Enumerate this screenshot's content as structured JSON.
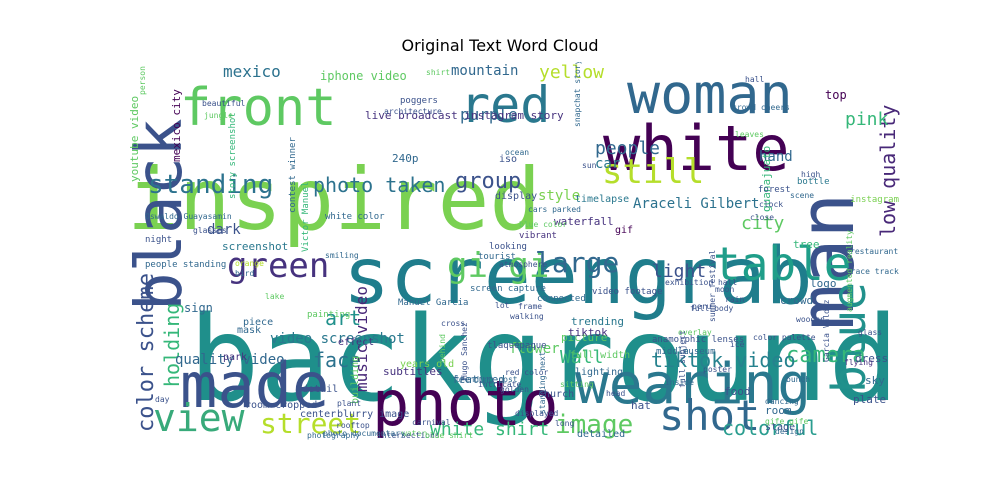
{
  "chart_data": {
    "type": "wordcloud",
    "title": "Original Text Word Cloud",
    "words": [
      {
        "text": "background",
        "color": "#1f8f8b"
      },
      {
        "text": "inspired",
        "color": "#7ad151"
      },
      {
        "text": "screengrab",
        "color": "#1f7d8c"
      },
      {
        "text": "photo",
        "color": "#440154"
      },
      {
        "text": "wearing",
        "color": "#2a788e"
      },
      {
        "text": "white",
        "color": "#440154"
      },
      {
        "text": "woman",
        "color": "#31688e"
      },
      {
        "text": "man",
        "color": "#3b528b"
      },
      {
        "text": "black",
        "color": "#3b528b"
      },
      {
        "text": "made",
        "color": "#3b528b"
      },
      {
        "text": "red",
        "color": "#2a788e"
      },
      {
        "text": "front",
        "color": "#5ec962"
      },
      {
        "text": "table",
        "color": "#1f9e89"
      },
      {
        "text": "blue",
        "color": "#21918c"
      },
      {
        "text": "view",
        "color": "#38aa7a"
      },
      {
        "text": "shot",
        "color": "#31688e"
      },
      {
        "text": "green",
        "color": "#46327e"
      },
      {
        "text": "still",
        "color": "#b5de2b"
      },
      {
        "text": "gi gi",
        "color": "#5ec962"
      },
      {
        "text": "standing",
        "color": "#2c728e"
      },
      {
        "text": "large",
        "color": "#31688e"
      },
      {
        "text": "street",
        "color": "#b5de2b"
      },
      {
        "text": "image",
        "color": "#5ec962"
      },
      {
        "text": "camera",
        "color": "#35b779"
      },
      {
        "text": "colorful",
        "color": "#2a9d8f"
      },
      {
        "text": "color scheme",
        "color": "#3b528b"
      },
      {
        "text": "holding",
        "color": "#35b779"
      },
      {
        "text": "low quality",
        "color": "#482878"
      },
      {
        "text": "group",
        "color": "#3b528b"
      },
      {
        "text": "photo taken",
        "color": "#2c728e"
      },
      {
        "text": "tiktok video",
        "color": "#26828e"
      },
      {
        "text": "white shirt",
        "color": "#35b779"
      },
      {
        "text": "Wall",
        "color": "#35b779"
      },
      {
        "text": "face",
        "color": "#2c728e"
      },
      {
        "text": "music video",
        "color": "#482878"
      },
      {
        "text": "art",
        "color": "#21918c"
      },
      {
        "text": "light",
        "color": "#3b528b"
      },
      {
        "text": "city",
        "color": "#5ec962"
      },
      {
        "text": "people",
        "color": "#31688e"
      },
      {
        "text": "yellow",
        "color": "#b5de2b"
      },
      {
        "text": "pink",
        "color": "#35b779"
      },
      {
        "text": "mexico",
        "color": "#2c728e"
      },
      {
        "text": "purple",
        "color": "#31688e"
      },
      {
        "text": "mountain",
        "color": "#31688e"
      },
      {
        "text": "quality video",
        "color": "#31688e"
      },
      {
        "text": "video screenshot",
        "color": "#2a788e"
      },
      {
        "text": "flower",
        "color": "#5ec962"
      },
      {
        "text": "car",
        "color": "#2a788e"
      },
      {
        "text": "hand",
        "color": "#31688e"
      },
      {
        "text": "dark",
        "color": "#3b528b"
      },
      {
        "text": "style",
        "color": "#7ad151"
      },
      {
        "text": "Araceli Gilbert",
        "color": "#2c728e"
      },
      {
        "text": "iphone video",
        "color": "#5ec962"
      },
      {
        "text": "live broadcast instagram story",
        "color": "#46327e"
      },
      {
        "text": "youtube video",
        "color": "#5ec962"
      },
      {
        "text": "mexico city",
        "color": "#440154"
      },
      {
        "text": "subtitles",
        "color": "#46327e"
      },
      {
        "text": "featured",
        "color": "#31688e"
      },
      {
        "text": "building",
        "color": "#5ec962"
      },
      {
        "text": "sign",
        "color": "#31688e"
      },
      {
        "text": "waterfall",
        "color": "#46327e"
      },
      {
        "text": "picture",
        "color": "#5ec962"
      },
      {
        "text": "screenshot",
        "color": "#2a788e"
      },
      {
        "text": "crowd",
        "color": "#31688e"
      },
      {
        "text": "logo",
        "color": "#31688e"
      },
      {
        "text": "tree",
        "color": "#35b779"
      },
      {
        "text": "trending",
        "color": "#2a788e"
      },
      {
        "text": "tiktok",
        "color": "#46327e"
      },
      {
        "text": "full width",
        "color": "#5ec962"
      },
      {
        "text": "lighting",
        "color": "#31688e"
      },
      {
        "text": "church",
        "color": "#3b528b"
      },
      {
        "text": "food",
        "color": "#3b528b"
      },
      {
        "text": "room",
        "color": "#31688e"
      },
      {
        "text": "hat",
        "color": "#3b528b"
      },
      {
        "text": "detailed",
        "color": "#31688e"
      },
      {
        "text": "top",
        "color": "#440154"
      },
      {
        "text": "240p",
        "color": "#31688e"
      },
      {
        "text": "iso",
        "color": "#3b528b"
      },
      {
        "text": "display",
        "color": "#3b528b"
      },
      {
        "text": "timelapse",
        "color": "#2a788e"
      },
      {
        "text": "gif",
        "color": "#440154"
      },
      {
        "text": "guanajuato",
        "color": "#35b779"
      },
      {
        "text": "dress",
        "color": "#3b528b"
      },
      {
        "text": "sky",
        "color": "#31688e"
      },
      {
        "text": "plate",
        "color": "#3b528b"
      },
      {
        "text": "stage",
        "color": "#3b528b"
      },
      {
        "text": "center",
        "color": "#3b528b"
      },
      {
        "text": "years old",
        "color": "#7ad151"
      },
      {
        "text": "effect",
        "color": "#46327e"
      },
      {
        "text": "mask",
        "color": "#31688e"
      },
      {
        "text": "piece",
        "color": "#31688e"
      },
      {
        "text": "park",
        "color": "#46327e"
      },
      {
        "text": "blurry image",
        "color": "#3b528b"
      },
      {
        "text": "room cropped",
        "color": "#3b528b"
      },
      {
        "text": "detail",
        "color": "#3b528b"
      },
      {
        "text": "people standing",
        "color": "#31688e"
      },
      {
        "text": "night",
        "color": "#3b528b"
      },
      {
        "text": "white color",
        "color": "#31688e"
      },
      {
        "text": "video footage",
        "color": "#3b528b"
      },
      {
        "text": "screen capture",
        "color": "#31688e"
      },
      {
        "text": "connected",
        "color": "#31688e"
      },
      {
        "text": "tourist",
        "color": "#31688e"
      },
      {
        "text": "vibrant",
        "color": "#46327e"
      },
      {
        "text": "looking",
        "color": "#3b528b"
      },
      {
        "text": "Manuel Garcia",
        "color": "#31688e"
      },
      {
        "text": "painting",
        "color": "#5ec962"
      },
      {
        "text": "Victor Manuel",
        "color": "#35b779"
      },
      {
        "text": "museum",
        "color": "#31688e"
      },
      {
        "text": "anamorphic lenses",
        "color": "#3b528b"
      },
      {
        "text": "middle",
        "color": "#31688e"
      },
      {
        "text": "tlaquepaque",
        "color": "#3b528b"
      },
      {
        "text": "bottle",
        "color": "#2a788e"
      },
      {
        "text": "forest",
        "color": "#3b528b"
      },
      {
        "text": "instagram",
        "color": "#7ad151"
      },
      {
        "text": "restaurant",
        "color": "#31688e"
      },
      {
        "text": "race track",
        "color": "#31688e"
      },
      {
        "text": "glass",
        "color": "#3b528b"
      },
      {
        "text": "flying",
        "color": "#46327e"
      },
      {
        "text": "augmented reality",
        "color": "#5ec962"
      },
      {
        "text": "Garcia Valdez",
        "color": "#3b528b"
      },
      {
        "text": "poster",
        "color": "#3b528b"
      },
      {
        "text": "dancing",
        "color": "#31688e"
      },
      {
        "text": "gife gife",
        "color": "#5ec962"
      },
      {
        "text": "summer festival",
        "color": "#3b528b"
      },
      {
        "text": "overlay",
        "color": "#5ec962"
      },
      {
        "text": "snapchat story",
        "color": "#31688e"
      },
      {
        "text": "poggers",
        "color": "#3b528b"
      },
      {
        "text": "story screenshot",
        "color": "#35b779"
      },
      {
        "text": "contest winner",
        "color": "#31688e"
      },
      {
        "text": "architecture",
        "color": "#3b528b"
      },
      {
        "text": "shirt",
        "color": "#5ec962"
      },
      {
        "text": "ocean",
        "color": "#31688e"
      },
      {
        "text": "beautiful",
        "color": "#3b528b"
      },
      {
        "text": "jungle",
        "color": "#5ec962"
      },
      {
        "text": "person",
        "color": "#5ec962"
      },
      {
        "text": "glasses",
        "color": "#3b528b"
      },
      {
        "text": "Oswaldo Guayasamin",
        "color": "#31688e"
      },
      {
        "text": "orange",
        "color": "#b5de2b"
      },
      {
        "text": "smiling",
        "color": "#31688e"
      },
      {
        "text": "full body",
        "color": "#3b528b"
      },
      {
        "text": "exhibition hall",
        "color": "#3b528b"
      },
      {
        "text": "photography",
        "color": "#31688e"
      },
      {
        "text": "water",
        "color": "#5ec962"
      },
      {
        "text": "carnival",
        "color": "#3b528b"
      },
      {
        "text": "intersections",
        "color": "#3b528b"
      },
      {
        "text": "blue shirt",
        "color": "#5ec962"
      },
      {
        "text": "wooden",
        "color": "#3b528b"
      },
      {
        "text": "bunch",
        "color": "#31688e"
      },
      {
        "text": "head",
        "color": "#3b528b"
      },
      {
        "text": "displayed",
        "color": "#3b528b"
      },
      {
        "text": "standing next",
        "color": "#31688e"
      },
      {
        "text": "golden",
        "color": "#3b528b"
      },
      {
        "text": "rooftop",
        "color": "#3b528b"
      },
      {
        "text": "plant",
        "color": "#3b528b"
      },
      {
        "text": "inside",
        "color": "#31688e"
      },
      {
        "text": "full subject",
        "color": "#3b528b"
      },
      {
        "text": "atmosphere",
        "color": "#3b528b"
      },
      {
        "text": "sun",
        "color": "#3b528b"
      },
      {
        "text": "clock",
        "color": "#3b528b"
      },
      {
        "text": "scene",
        "color": "#31688e"
      },
      {
        "text": "high",
        "color": "#3b528b"
      },
      {
        "text": "crowd cheers",
        "color": "#31688e"
      },
      {
        "text": "peru",
        "color": "#3b528b"
      },
      {
        "text": "leaves",
        "color": "#5ec962"
      },
      {
        "text": "blue color",
        "color": "#5ec962"
      },
      {
        "text": "lot",
        "color": "#3b528b"
      },
      {
        "text": "frame",
        "color": "#3b528b"
      },
      {
        "text": "bird",
        "color": "#31688e"
      },
      {
        "text": "walking",
        "color": "#3b528b"
      },
      {
        "text": "red color",
        "color": "#3b528b"
      },
      {
        "text": "cars parked",
        "color": "#31688e"
      },
      {
        "text": "hall",
        "color": "#3b528b"
      },
      {
        "text": "ice",
        "color": "#3b528b"
      },
      {
        "text": "lake",
        "color": "#5ec962"
      },
      {
        "text": "color palette",
        "color": "#3b528b"
      },
      {
        "text": "trending post",
        "color": "#31688e"
      },
      {
        "text": "Hugo Sanchez",
        "color": "#3b528b"
      },
      {
        "text": "cross",
        "color": "#3b528b"
      },
      {
        "text": "photo documentary",
        "color": "#31688e"
      },
      {
        "text": "close",
        "color": "#3b528b"
      },
      {
        "text": "long",
        "color": "#3b528b"
      },
      {
        "text": "behind",
        "color": "#5ec962"
      },
      {
        "text": "design",
        "color": "#31688e"
      },
      {
        "text": "intricate",
        "color": "#3b528b"
      },
      {
        "text": "sitting",
        "color": "#5ec962"
      },
      {
        "text": "moon",
        "color": "#3b528b"
      },
      {
        "text": "rain",
        "color": "#3b528b"
      },
      {
        "text": "day",
        "color": "#3b528b"
      }
    ]
  }
}
